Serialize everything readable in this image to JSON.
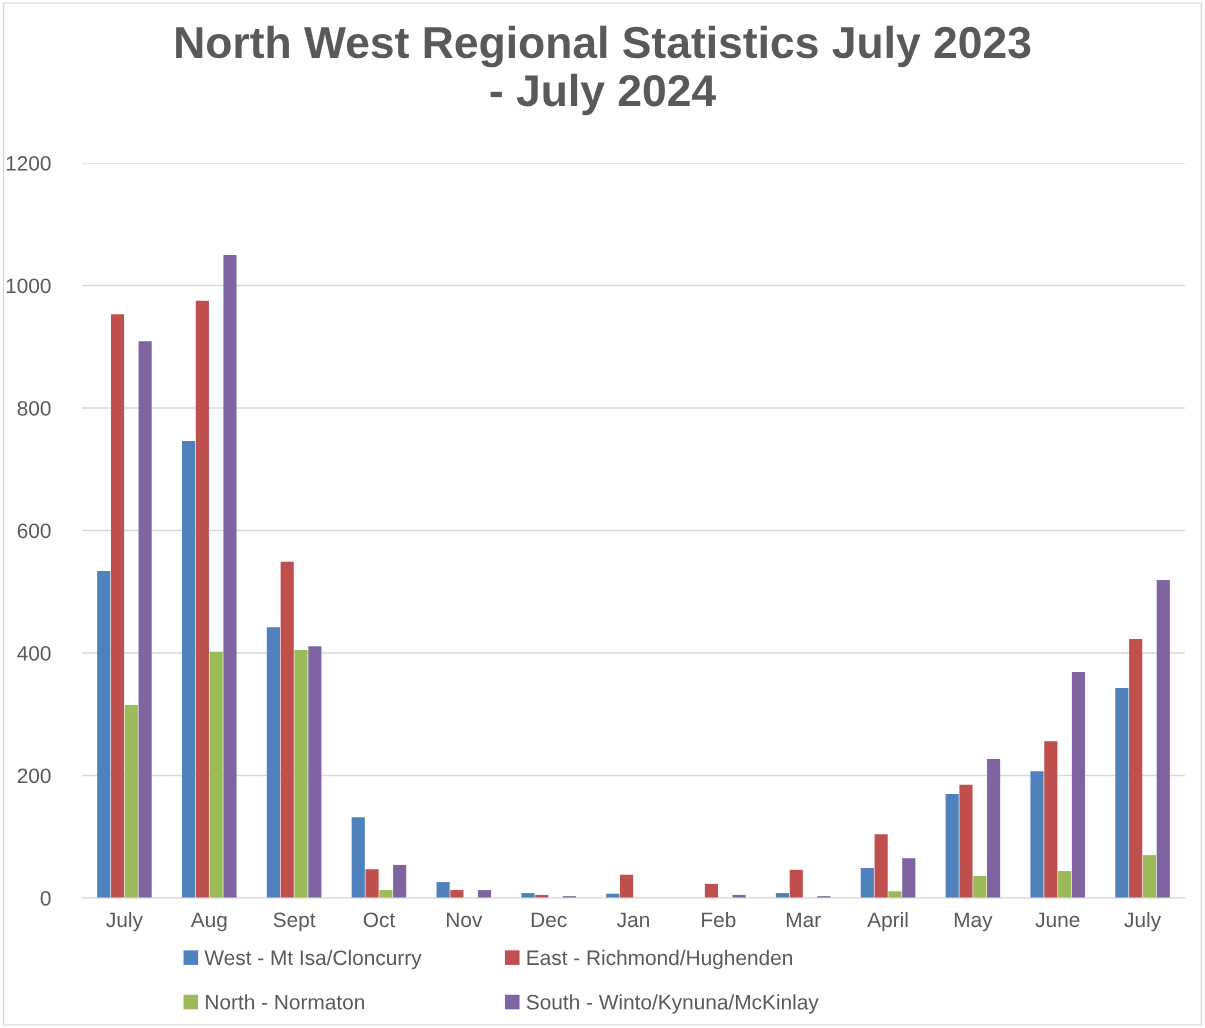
{
  "chart_data": {
    "type": "bar",
    "title": "North West Regional Statistics July 2023\n- July 2024",
    "categories": [
      "July",
      "Aug",
      "Sept",
      "Oct",
      "Nov",
      "Dec",
      "Jan",
      "Feb",
      "Mar",
      "April",
      "May",
      "June",
      "July"
    ],
    "series": [
      {
        "name": "West - Mt Isa/Cloncurry",
        "color": "#4f81bd",
        "values": [
          534,
          746,
          442,
          132,
          26,
          8,
          7,
          null,
          8,
          49,
          170,
          207,
          343
        ]
      },
      {
        "name": "East - Richmond/Hughenden",
        "color": "#c0504d",
        "values": [
          953,
          975,
          549,
          47,
          13,
          5,
          38,
          23,
          46,
          104,
          185,
          256,
          423
        ]
      },
      {
        "name": "North - Normaton",
        "color": "#9bbb59",
        "values": [
          315,
          402,
          405,
          13,
          0,
          null,
          null,
          0,
          0,
          11,
          36,
          44,
          70
        ]
      },
      {
        "name": "South - Winto/Kynuna/McKinlay",
        "color": "#8064a2",
        "values": [
          909,
          1050,
          411,
          54,
          13,
          3,
          null,
          5,
          3,
          65,
          227,
          369,
          519
        ]
      }
    ],
    "ylim": [
      0,
      1200
    ],
    "yticks": [
      0,
      200,
      400,
      600,
      800,
      1000,
      1200
    ],
    "grid": "y",
    "legend": "bottom"
  }
}
